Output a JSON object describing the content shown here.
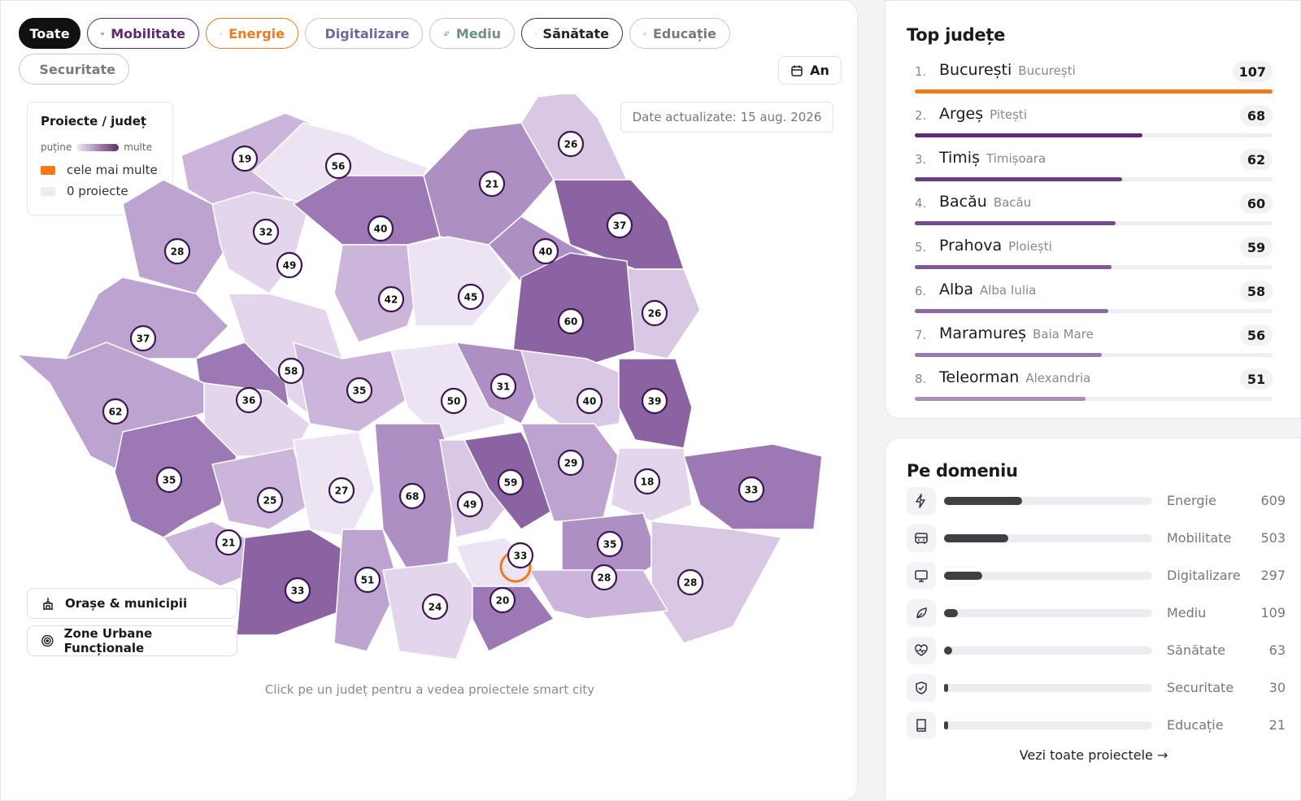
{
  "filters": [
    {
      "label": "Toate",
      "icon": "none",
      "active": true,
      "color": "#111111"
    },
    {
      "label": "Mobilitate",
      "icon": "bus-icon",
      "active": false,
      "color": "#5b2a72"
    },
    {
      "label": "Energie",
      "icon": "lightning-icon",
      "active": false,
      "color": "#f07a1a"
    },
    {
      "label": "Digitalizare",
      "icon": "monitor-icon",
      "active": false,
      "color": "#6e6a9e"
    },
    {
      "label": "Mediu",
      "icon": "leaf-icon",
      "active": false,
      "color": "#6f8f80"
    },
    {
      "label": "Sănătate",
      "icon": "heart-pulse-icon",
      "active": false,
      "color": "#222222"
    },
    {
      "label": "Educație",
      "icon": "book-icon",
      "active": false,
      "color": "#7a7a7a"
    },
    {
      "label": "Securitate",
      "icon": "shield-icon",
      "active": false,
      "color": "#7a7a7a"
    }
  ],
  "period_label": "An",
  "updated_text": "Date actualizate: 15 aug. 2026",
  "legend": {
    "title": "Proiecte / județ",
    "low": "puține",
    "high": "multe",
    "most": "cele mai multe",
    "none": "0 proiecte",
    "most_color": "#f07a1a",
    "none_color": "#ececec"
  },
  "map": {
    "selected_marker": "33",
    "markers": [
      "19",
      "56",
      "26",
      "21",
      "32",
      "40",
      "37",
      "28",
      "49",
      "40",
      "42",
      "45",
      "26",
      "37",
      "60",
      "58",
      "35",
      "50",
      "31",
      "40",
      "39",
      "62",
      "36",
      "35",
      "25",
      "27",
      "68",
      "59",
      "49",
      "29",
      "18",
      "33",
      "21",
      "33",
      "35",
      "28",
      "33",
      "51",
      "24",
      "20",
      "28"
    ]
  },
  "layers": {
    "cities": "Orașe & municipii",
    "zones": "Zone Urbane Funcționale"
  },
  "hint": "Click pe un județ pentru a vedea proiectele smart city",
  "top_counties": {
    "title": "Top județe",
    "items": [
      {
        "rank": "1.",
        "name": "București",
        "city": "București",
        "count": 107,
        "color": "#f07a1a"
      },
      {
        "rank": "2.",
        "name": "Argeș",
        "city": "Pitești",
        "count": 68,
        "color": "#5e2a74"
      },
      {
        "rank": "3.",
        "name": "Timiș",
        "city": "Timișoara",
        "count": 62,
        "color": "#6a3a80"
      },
      {
        "rank": "4.",
        "name": "Bacău",
        "city": "Bacău",
        "count": 60,
        "color": "#764a8c"
      },
      {
        "rank": "5.",
        "name": "Prahova",
        "city": "Ploiești",
        "count": 59,
        "color": "#805896"
      },
      {
        "rank": "6.",
        "name": "Alba",
        "city": "Alba Iulia",
        "count": 58,
        "color": "#8d68a2"
      },
      {
        "rank": "7.",
        "name": "Maramureș",
        "city": "Baia Mare",
        "count": 56,
        "color": "#9a7aae"
      },
      {
        "rank": "8.",
        "name": "Teleorman",
        "city": "Alexandria",
        "count": 51,
        "color": "#a98dbb"
      }
    ]
  },
  "domains": {
    "title": "Pe domeniu",
    "items": [
      {
        "label": "Energie",
        "icon": "lightning-icon",
        "count": 609
      },
      {
        "label": "Mobilitate",
        "icon": "bus-icon",
        "count": 503
      },
      {
        "label": "Digitalizare",
        "icon": "monitor-icon",
        "count": 297
      },
      {
        "label": "Mediu",
        "icon": "leaf-icon",
        "count": 109
      },
      {
        "label": "Sănătate",
        "icon": "heart-pulse-icon",
        "count": 63
      },
      {
        "label": "Securitate",
        "icon": "shield-icon",
        "count": 30
      },
      {
        "label": "Educație",
        "icon": "book-icon",
        "count": 21
      }
    ],
    "see_all": "Vezi toate proiectele →"
  }
}
